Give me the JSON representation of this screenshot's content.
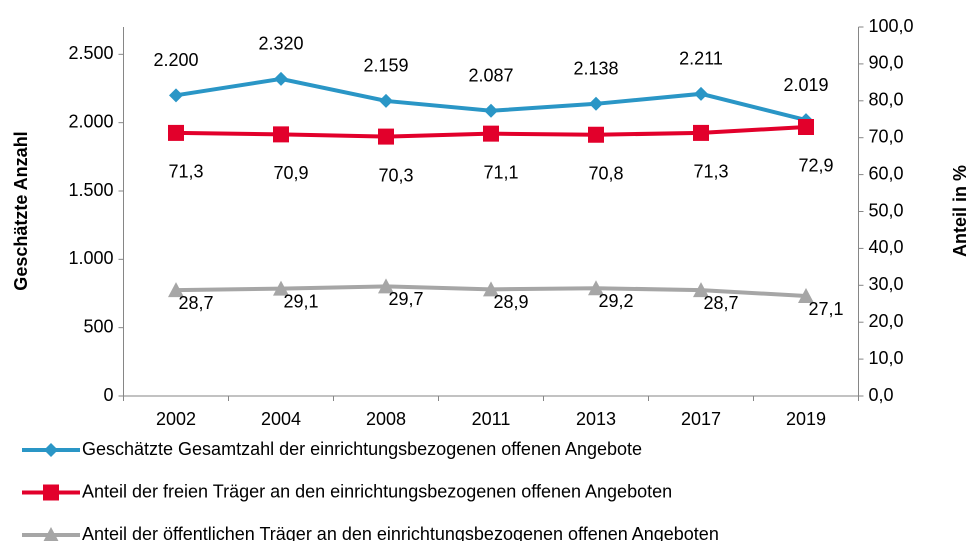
{
  "chart_data": {
    "type": "line",
    "ylabel": "Geschätzte Anzahl",
    "y2label": "Anteil in %",
    "categories": [
      "2002",
      "2004",
      "2008",
      "2011",
      "2013",
      "2017",
      "2019"
    ],
    "ylim": [
      0,
      2700
    ],
    "yticks": [
      0,
      {
        "value": 500,
        "label": "500"
      },
      {
        "value": 1000,
        "label": "1.000"
      },
      {
        "value": 1500,
        "label": "1.500"
      },
      {
        "value": 2000,
        "label": "2.000"
      },
      {
        "value": 2500,
        "label": "2.500"
      }
    ],
    "y2lim": [
      0,
      100
    ],
    "y2ticks": [
      {
        "value": 0,
        "label": "0,0"
      },
      {
        "value": 10,
        "label": "10,0"
      },
      {
        "value": 20,
        "label": "20,0"
      },
      {
        "value": 30,
        "label": "30,0"
      },
      {
        "value": 40,
        "label": "40,0"
      },
      {
        "value": 50,
        "label": "50,0"
      },
      {
        "value": 60,
        "label": "60,0"
      },
      {
        "value": 70,
        "label": "70,0"
      },
      {
        "value": 80,
        "label": "80,0"
      },
      {
        "value": 90,
        "label": "90,0"
      },
      {
        "value": 100,
        "label": "100,0"
      }
    ],
    "legend": "bottom",
    "series": [
      {
        "name": "Geschätzte Gesamtzahl der einrichtungsbezogenen offenen Angebote",
        "color": "#2a96c6",
        "marker": "diamond",
        "values": [
          2200,
          2320,
          2159,
          2087,
          2138,
          2211,
          2019
        ],
        "value_labels": [
          "2.200",
          "2.320",
          "2.159",
          "2.087",
          "2.138",
          "2.211",
          "2.019"
        ]
      },
      {
        "name": "Anteil der freien Träger an den einrichtungsbezogenen offenen Angeboten",
        "color": "#e2002b",
        "marker": "square",
        "axis": "y2",
        "values": [
          71.3,
          70.9,
          70.3,
          71.1,
          70.8,
          71.3,
          72.9
        ],
        "value_labels": [
          "71,3",
          "70,9",
          "70,3",
          "71,1",
          "70,8",
          "71,3",
          "72,9"
        ]
      },
      {
        "name": "Anteil der öffentlichen Träger an den einrichtungsbezogenen offenen Angeboten",
        "color": "#a6a6a6",
        "marker": "triangle",
        "axis": "y2",
        "values": [
          28.7,
          29.1,
          29.7,
          28.9,
          29.2,
          28.7,
          27.1
        ],
        "value_labels": [
          "28,7",
          "29,1",
          "29,7",
          "28,9",
          "29,2",
          "28,7",
          "27,1"
        ]
      }
    ]
  }
}
